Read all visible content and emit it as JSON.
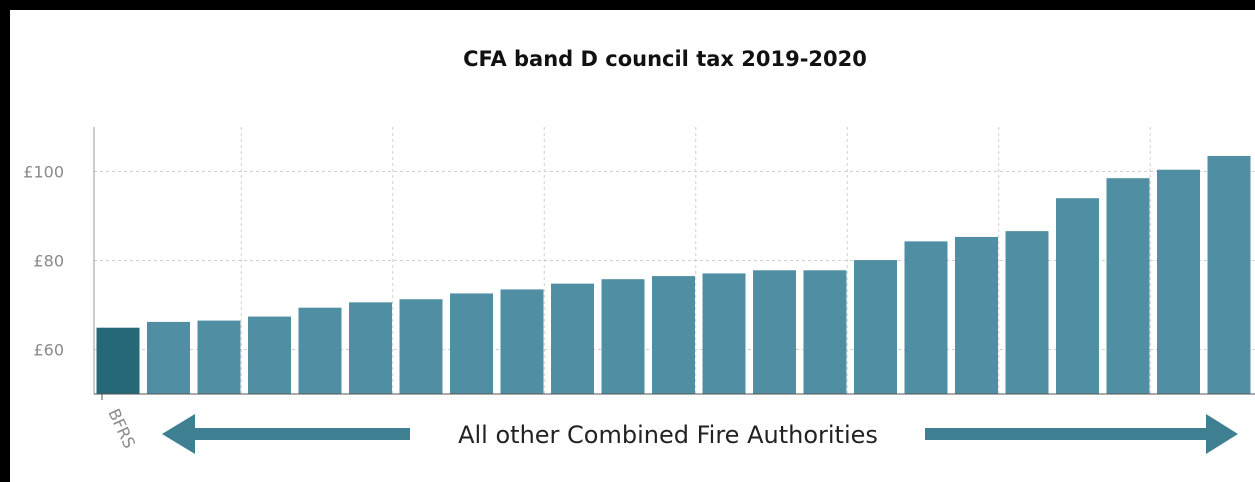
{
  "chart_data": {
    "type": "bar",
    "title": "CFA band D council tax 2019-2020",
    "xlabel": "",
    "ylabel": "",
    "ylim": [
      50,
      110
    ],
    "yticks": [
      {
        "value": 60,
        "label": "£60"
      },
      {
        "value": 80,
        "label": "£80"
      },
      {
        "value": 100,
        "label": "£100"
      }
    ],
    "grid": true,
    "categories": [
      "BFRS",
      "",
      "",
      "",
      "",
      "",
      "",
      "",
      "",
      "",
      "",
      "",
      "",
      "",
      "",
      "",
      "",
      "",
      "",
      "",
      "",
      "",
      ""
    ],
    "values": [
      64.9,
      66.2,
      66.5,
      67.4,
      69.4,
      70.6,
      71.3,
      72.6,
      73.5,
      74.8,
      75.8,
      76.5,
      77.1,
      77.8,
      77.8,
      80.1,
      84.3,
      85.3,
      86.6,
      94.0,
      98.5,
      100.4,
      103.5
    ],
    "colors": {
      "highlight": "#256878",
      "bar": "#508fa3",
      "arrow": "#3f7f92"
    },
    "annotation": "All other Combined Fire Authorities"
  }
}
